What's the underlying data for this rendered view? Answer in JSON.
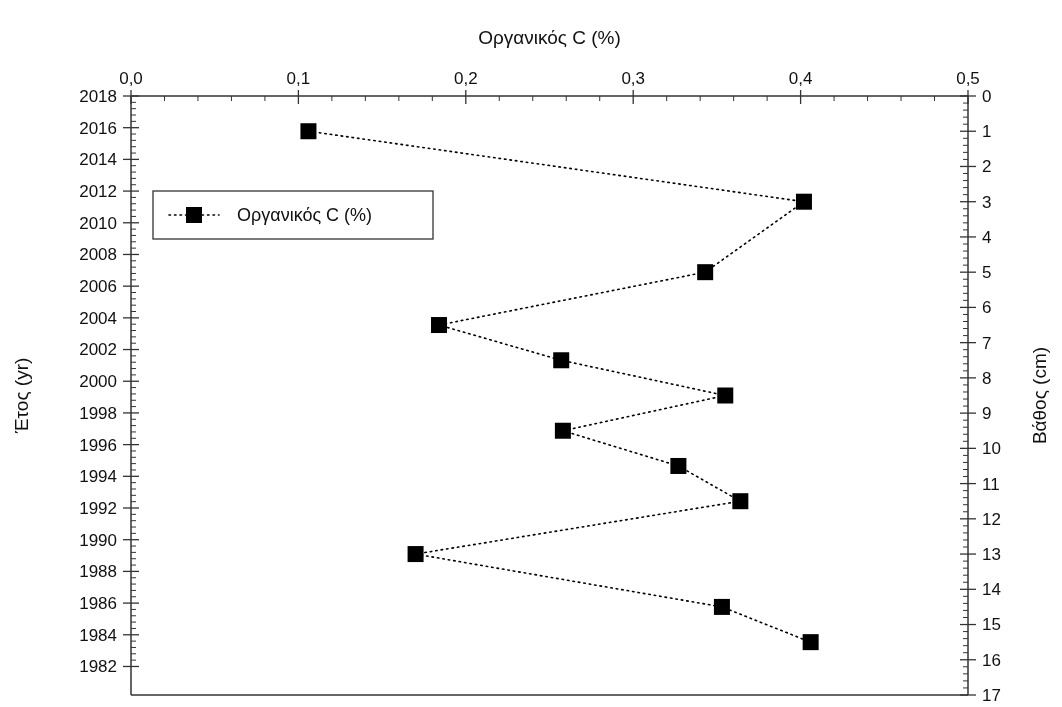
{
  "chart_data": {
    "type": "line",
    "xlabel": "Οργανικός C (%)",
    "ylabel": "Έτος (yr)",
    "y2label": "Βάθος (cm)",
    "xlim": [
      0,
      0.5
    ],
    "xticks": [
      {
        "value": 0,
        "label": "0,0"
      },
      {
        "value": 0.1,
        "label": "0,1"
      },
      {
        "value": 0.2,
        "label": "0,2"
      },
      {
        "value": 0.3,
        "label": "0,3"
      },
      {
        "value": 0.4,
        "label": "0,4"
      },
      {
        "value": 0.5,
        "label": "0,5"
      }
    ],
    "ylim": [
      1980.2,
      2018
    ],
    "yticks": [
      1982,
      1984,
      1986,
      1988,
      1990,
      1992,
      1994,
      1996,
      1998,
      2000,
      2002,
      2004,
      2006,
      2008,
      2010,
      2012,
      2014,
      2016,
      2018
    ],
    "y2lim": [
      17,
      0
    ],
    "y2ticks": [
      0,
      1,
      2,
      3,
      4,
      5,
      6,
      7,
      8,
      9,
      10,
      11,
      12,
      13,
      14,
      15,
      16,
      17
    ],
    "series": [
      {
        "name": "Οργανικός C (%)",
        "color": "#000000",
        "axis": "y2",
        "x": [
          0.106,
          0.402,
          0.343,
          0.184,
          0.257,
          0.355,
          0.258,
          0.327,
          0.364,
          0.17,
          0.353,
          0.406
        ],
        "values": [
          1,
          3,
          5,
          6.5,
          7.5,
          8.5,
          9.5,
          10.5,
          11.5,
          13,
          14.5,
          15.5
        ]
      }
    ],
    "marker": "square",
    "line_style": "dotted",
    "legend": "top left",
    "grid": false
  }
}
